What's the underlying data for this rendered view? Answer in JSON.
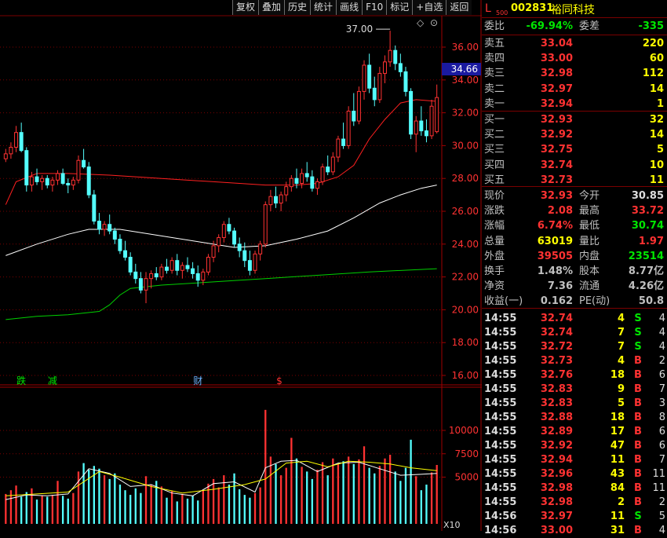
{
  "toolbar": [
    "复权",
    "叠加",
    "历史",
    "统计",
    "画线",
    "F10",
    "标记",
    "+自选",
    "返回"
  ],
  "header": {
    "market": "L",
    "market_sub": "500",
    "code": "002831",
    "name": "裕同科技"
  },
  "ratio": {
    "l1": "委比",
    "v1": "-69.94%",
    "l2": "委差",
    "v2": "-335"
  },
  "asks": [
    {
      "label": "卖五",
      "price": "33.04",
      "vol": "220"
    },
    {
      "label": "卖四",
      "price": "33.00",
      "vol": "60"
    },
    {
      "label": "卖三",
      "price": "32.98",
      "vol": "112"
    },
    {
      "label": "卖二",
      "price": "32.97",
      "vol": "14"
    },
    {
      "label": "卖一",
      "price": "32.94",
      "vol": "1"
    }
  ],
  "bids": [
    {
      "label": "买一",
      "price": "32.93",
      "vol": "32"
    },
    {
      "label": "买二",
      "price": "32.92",
      "vol": "14"
    },
    {
      "label": "买三",
      "price": "32.75",
      "vol": "5"
    },
    {
      "label": "买四",
      "price": "32.74",
      "vol": "10"
    },
    {
      "label": "买五",
      "price": "32.73",
      "vol": "11"
    }
  ],
  "stats": [
    {
      "l1": "现价",
      "v1": "32.93",
      "c1": "red",
      "l2": "今开",
      "v2": "30.85",
      "c2": "white"
    },
    {
      "l1": "涨跌",
      "v1": "2.08",
      "c1": "red",
      "l2": "最高",
      "v2": "33.72",
      "c2": "red"
    },
    {
      "l1": "涨幅",
      "v1": "6.74%",
      "c1": "red",
      "l2": "最低",
      "v2": "30.74",
      "c2": "green"
    },
    {
      "l1": "总量",
      "v1": "63019",
      "c1": "yellow",
      "l2": "量比",
      "v2": "1.97",
      "c2": "red"
    },
    {
      "l1": "外盘",
      "v1": "39505",
      "c1": "red",
      "l2": "内盘",
      "v2": "23514",
      "c2": "green"
    },
    {
      "l1": "换手",
      "v1": "1.48%",
      "c1": "gray",
      "l2": "股本",
      "v2": "8.77亿",
      "c2": "gray"
    },
    {
      "l1": "净资",
      "v1": "7.36",
      "c1": "gray",
      "l2": "流通",
      "v2": "4.26亿",
      "c2": "gray"
    },
    {
      "l1": "收益(一)",
      "v1": "0.162",
      "c1": "gray",
      "l2": "PE(动)",
      "v2": "50.8",
      "c2": "gray"
    }
  ],
  "trades": [
    {
      "time": "14:55",
      "price": "32.74",
      "vol": "4",
      "dir": "S",
      "n": "4"
    },
    {
      "time": "14:55",
      "price": "32.74",
      "vol": "7",
      "dir": "S",
      "n": "4"
    },
    {
      "time": "14:55",
      "price": "32.72",
      "vol": "7",
      "dir": "S",
      "n": "4"
    },
    {
      "time": "14:55",
      "price": "32.73",
      "vol": "4",
      "dir": "B",
      "n": "2"
    },
    {
      "time": "14:55",
      "price": "32.76",
      "vol": "18",
      "dir": "B",
      "n": "6"
    },
    {
      "time": "14:55",
      "price": "32.83",
      "vol": "9",
      "dir": "B",
      "n": "7"
    },
    {
      "time": "14:55",
      "price": "32.83",
      "vol": "5",
      "dir": "B",
      "n": "3"
    },
    {
      "time": "14:55",
      "price": "32.88",
      "vol": "18",
      "dir": "B",
      "n": "8"
    },
    {
      "time": "14:55",
      "price": "32.89",
      "vol": "17",
      "dir": "B",
      "n": "6"
    },
    {
      "time": "14:55",
      "price": "32.92",
      "vol": "47",
      "dir": "B",
      "n": "6"
    },
    {
      "time": "14:55",
      "price": "32.94",
      "vol": "11",
      "dir": "B",
      "n": "7"
    },
    {
      "time": "14:55",
      "price": "32.96",
      "vol": "43",
      "dir": "B",
      "n": "11"
    },
    {
      "time": "14:55",
      "price": "32.98",
      "vol": "84",
      "dir": "B",
      "n": "11"
    },
    {
      "time": "14:55",
      "price": "32.98",
      "vol": "2",
      "dir": "B",
      "n": "2"
    },
    {
      "time": "14:56",
      "price": "32.97",
      "vol": "11",
      "dir": "S",
      "n": "5"
    },
    {
      "time": "14:56",
      "price": "33.00",
      "vol": "31",
      "dir": "B",
      "n": "4"
    }
  ],
  "chart_data": {
    "type": "candlestick",
    "price_axis": {
      "ticks": [
        "36.00",
        "34.00",
        "32.00",
        "30.00",
        "28.00",
        "26.00",
        "24.00",
        "22.00",
        "20.00",
        "18.00",
        "16.00"
      ],
      "current_label": "34.66",
      "range": [
        15.5,
        37.5
      ]
    },
    "volume_axis": {
      "ticks": [
        "10000",
        "7500",
        "5000"
      ],
      "unit_label": "X10",
      "range": [
        0,
        13000
      ]
    },
    "high_annotation": {
      "text": "37.00",
      "price": 37.0
    },
    "event_marks": [
      {
        "text": "跌",
        "color": "#00e600",
        "bar": 3
      },
      {
        "text": "减",
        "color": "#00e600",
        "bar": 9
      },
      {
        "text": "财",
        "color": "#6fb4ff",
        "bar": 37
      },
      {
        "text": "$",
        "color": "#ff3232",
        "bar": 53
      }
    ],
    "colors": {
      "up": "#ff3232",
      "down": "#54ffff",
      "ma1": "#ff2020",
      "ma2": "#ffffff",
      "ma3": "#00d000",
      "vol_ma1": "#ffffff",
      "vol_ma2": "#ffff00"
    },
    "candles": [
      [
        29.2,
        29.8,
        29.0,
        29.5
      ],
      [
        29.5,
        30.2,
        29.2,
        29.9
      ],
      [
        29.9,
        31.2,
        29.6,
        30.8
      ],
      [
        30.8,
        31.4,
        29.6,
        29.7
      ],
      [
        29.7,
        29.9,
        27.2,
        27.6
      ],
      [
        27.6,
        28.4,
        27.2,
        28.1
      ],
      [
        28.1,
        28.6,
        27.6,
        27.8
      ],
      [
        27.8,
        28.2,
        27.3,
        28.0
      ],
      [
        28.0,
        28.2,
        27.4,
        27.6
      ],
      [
        27.6,
        28.1,
        27.2,
        27.9
      ],
      [
        27.9,
        28.5,
        27.6,
        28.3
      ],
      [
        28.3,
        28.6,
        27.6,
        27.7
      ],
      [
        27.7,
        28.0,
        27.1,
        27.6
      ],
      [
        27.6,
        28.1,
        27.3,
        27.9
      ],
      [
        27.9,
        29.4,
        27.7,
        29.1
      ],
      [
        29.1,
        29.8,
        28.6,
        28.7
      ],
      [
        28.7,
        29.0,
        26.8,
        27.0
      ],
      [
        27.0,
        27.3,
        25.2,
        25.4
      ],
      [
        25.4,
        25.9,
        24.6,
        24.9
      ],
      [
        24.9,
        25.4,
        24.5,
        25.2
      ],
      [
        25.2,
        25.8,
        24.6,
        24.8
      ],
      [
        24.8,
        25.0,
        24.0,
        24.3
      ],
      [
        24.3,
        24.6,
        23.4,
        23.6
      ],
      [
        23.6,
        24.2,
        23.0,
        23.2
      ],
      [
        23.2,
        23.5,
        22.1,
        22.3
      ],
      [
        22.3,
        22.8,
        21.6,
        21.9
      ],
      [
        21.9,
        22.3,
        21.0,
        21.2
      ],
      [
        21.2,
        22.3,
        20.4,
        21.9
      ],
      [
        21.9,
        22.4,
        21.3,
        22.2
      ],
      [
        22.2,
        22.6,
        21.8,
        22.0
      ],
      [
        22.0,
        22.8,
        21.8,
        22.6
      ],
      [
        22.6,
        23.1,
        22.2,
        22.4
      ],
      [
        22.4,
        23.2,
        22.2,
        23.0
      ],
      [
        23.0,
        23.4,
        22.1,
        22.4
      ],
      [
        22.4,
        22.9,
        21.9,
        22.7
      ],
      [
        22.7,
        23.2,
        22.3,
        22.5
      ],
      [
        22.5,
        22.9,
        21.9,
        22.2
      ],
      [
        22.2,
        22.7,
        21.4,
        21.8
      ],
      [
        21.8,
        22.5,
        21.5,
        22.3
      ],
      [
        22.3,
        23.4,
        22.1,
        23.2
      ],
      [
        23.2,
        24.2,
        22.9,
        23.9
      ],
      [
        23.9,
        24.6,
        23.5,
        24.4
      ],
      [
        24.4,
        25.4,
        24.1,
        25.2
      ],
      [
        25.2,
        25.6,
        24.6,
        24.8
      ],
      [
        24.8,
        25.0,
        23.8,
        24.0
      ],
      [
        24.0,
        24.4,
        23.2,
        23.6
      ],
      [
        23.6,
        24.1,
        22.6,
        23.0
      ],
      [
        23.0,
        23.6,
        22.1,
        22.4
      ],
      [
        22.4,
        23.6,
        22.2,
        23.4
      ],
      [
        23.4,
        24.2,
        23.0,
        24.0
      ],
      [
        24.0,
        26.6,
        23.8,
        26.4
      ],
      [
        26.4,
        27.3,
        26.0,
        26.9
      ],
      [
        26.9,
        27.5,
        26.2,
        26.5
      ],
      [
        26.5,
        27.2,
        26.0,
        27.0
      ],
      [
        27.0,
        27.8,
        26.6,
        27.5
      ],
      [
        27.5,
        28.2,
        27.2,
        28.0
      ],
      [
        28.0,
        28.6,
        27.4,
        27.7
      ],
      [
        27.7,
        28.6,
        27.4,
        28.3
      ],
      [
        28.3,
        29.0,
        27.8,
        28.1
      ],
      [
        28.1,
        28.5,
        27.2,
        27.4
      ],
      [
        27.4,
        28.0,
        27.0,
        27.8
      ],
      [
        27.8,
        28.9,
        27.6,
        28.7
      ],
      [
        28.7,
        29.4,
        28.2,
        28.4
      ],
      [
        28.4,
        29.6,
        28.2,
        29.3
      ],
      [
        29.3,
        30.6,
        29.0,
        30.4
      ],
      [
        30.4,
        31.4,
        29.8,
        30.0
      ],
      [
        30.0,
        32.4,
        29.8,
        32.1
      ],
      [
        32.1,
        33.2,
        31.2,
        31.5
      ],
      [
        31.5,
        33.6,
        31.3,
        33.3
      ],
      [
        33.3,
        35.2,
        32.8,
        34.9
      ],
      [
        34.9,
        35.6,
        33.2,
        33.5
      ],
      [
        33.5,
        34.2,
        32.4,
        32.8
      ],
      [
        32.8,
        34.8,
        32.6,
        34.4
      ],
      [
        34.4,
        35.5,
        33.8,
        35.1
      ],
      [
        35.1,
        37.0,
        34.8,
        35.8
      ],
      [
        35.8,
        36.1,
        34.6,
        35.0
      ],
      [
        35.0,
        35.6,
        34.2,
        34.5
      ],
      [
        34.5,
        34.8,
        33.0,
        33.3
      ],
      [
        33.3,
        33.5,
        30.4,
        30.7
      ],
      [
        30.7,
        31.8,
        29.6,
        31.5
      ],
      [
        31.5,
        32.4,
        30.6,
        30.9
      ],
      [
        30.9,
        31.6,
        30.2,
        30.6
      ],
      [
        30.6,
        32.8,
        30.4,
        32.4
      ],
      [
        30.85,
        33.72,
        30.74,
        32.93
      ]
    ],
    "ma_red": [
      [
        0,
        26.4
      ],
      [
        2,
        27.8
      ],
      [
        6,
        28.3
      ],
      [
        12,
        28.3
      ],
      [
        20,
        28.2
      ],
      [
        30,
        28.0
      ],
      [
        40,
        27.8
      ],
      [
        50,
        27.6
      ],
      [
        56,
        27.6
      ],
      [
        60,
        27.7
      ],
      [
        64,
        28.1
      ],
      [
        67,
        28.8
      ],
      [
        70,
        30.4
      ],
      [
        73,
        31.6
      ],
      [
        76,
        32.6
      ],
      [
        79,
        32.8
      ],
      [
        83,
        32.7
      ]
    ],
    "ma_white": [
      [
        0,
        23.3
      ],
      [
        6,
        24.0
      ],
      [
        12,
        24.6
      ],
      [
        16,
        24.9
      ],
      [
        22,
        24.9
      ],
      [
        30,
        24.5
      ],
      [
        38,
        24.1
      ],
      [
        44,
        23.8
      ],
      [
        50,
        23.9
      ],
      [
        56,
        24.3
      ],
      [
        62,
        24.8
      ],
      [
        67,
        25.6
      ],
      [
        72,
        26.5
      ],
      [
        76,
        27.0
      ],
      [
        80,
        27.4
      ],
      [
        83,
        27.6
      ]
    ],
    "ma_green": [
      [
        0,
        19.4
      ],
      [
        6,
        19.6
      ],
      [
        12,
        19.7
      ],
      [
        18,
        19.9
      ],
      [
        20,
        20.3
      ],
      [
        22,
        20.9
      ],
      [
        24,
        21.3
      ],
      [
        30,
        21.5
      ],
      [
        40,
        21.7
      ],
      [
        50,
        21.9
      ],
      [
        60,
        22.1
      ],
      [
        70,
        22.3
      ],
      [
        83,
        22.5
      ]
    ],
    "volumes": [
      [
        0,
        3200
      ],
      [
        1,
        3600
      ],
      [
        2,
        4100
      ],
      [
        3,
        2900
      ],
      [
        4,
        3400
      ],
      [
        5,
        3800
      ],
      [
        6,
        2600
      ],
      [
        7,
        3000
      ],
      [
        8,
        2900
      ],
      [
        9,
        3100
      ],
      [
        10,
        4600
      ],
      [
        11,
        3000
      ],
      [
        12,
        2700
      ],
      [
        13,
        3300
      ],
      [
        14,
        5600
      ],
      [
        15,
        6500
      ],
      [
        16,
        5800
      ],
      [
        17,
        6200
      ],
      [
        18,
        5900
      ],
      [
        19,
        5200
      ],
      [
        20,
        4800
      ],
      [
        21,
        5400
      ],
      [
        22,
        4200
      ],
      [
        23,
        3600
      ],
      [
        24,
        3100
      ],
      [
        25,
        3800
      ],
      [
        26,
        3300
      ],
      [
        27,
        5100
      ],
      [
        28,
        4200
      ],
      [
        29,
        4600
      ],
      [
        30,
        4000
      ],
      [
        31,
        2800
      ],
      [
        32,
        3500
      ],
      [
        33,
        2400
      ],
      [
        34,
        3200
      ],
      [
        35,
        2700
      ],
      [
        36,
        3000
      ],
      [
        37,
        2500
      ],
      [
        38,
        3600
      ],
      [
        39,
        4300
      ],
      [
        40,
        4800
      ],
      [
        41,
        3900
      ],
      [
        42,
        5200
      ],
      [
        43,
        4200
      ],
      [
        44,
        5400
      ],
      [
        45,
        3700
      ],
      [
        46,
        3100
      ],
      [
        47,
        2800
      ],
      [
        48,
        3300
      ],
      [
        49,
        3900
      ],
      [
        50,
        12200
      ],
      [
        51,
        7200
      ],
      [
        52,
        6400
      ],
      [
        53,
        5200
      ],
      [
        54,
        6000
      ],
      [
        55,
        9200
      ],
      [
        56,
        7000
      ],
      [
        57,
        6100
      ],
      [
        58,
        5600
      ],
      [
        59,
        4800
      ],
      [
        60,
        5800
      ],
      [
        61,
        6600
      ],
      [
        62,
        5200
      ],
      [
        63,
        7000
      ],
      [
        64,
        6400
      ],
      [
        65,
        6700
      ],
      [
        66,
        7200
      ],
      [
        67,
        6400
      ],
      [
        68,
        6900
      ],
      [
        69,
        8300
      ],
      [
        70,
        6000
      ],
      [
        71,
        5400
      ],
      [
        72,
        6200
      ],
      [
        73,
        7000
      ],
      [
        74,
        7400
      ],
      [
        75,
        5600
      ],
      [
        76,
        4600
      ],
      [
        77,
        6000
      ],
      [
        78,
        9000
      ],
      [
        79,
        5100
      ],
      [
        80,
        3600
      ],
      [
        81,
        4200
      ],
      [
        82,
        5500
      ],
      [
        83,
        6300
      ]
    ],
    "vol_ma_white": [
      [
        0,
        2600
      ],
      [
        4,
        3100
      ],
      [
        8,
        3000
      ],
      [
        12,
        3200
      ],
      [
        16,
        5900
      ],
      [
        20,
        5400
      ],
      [
        24,
        4000
      ],
      [
        28,
        4200
      ],
      [
        32,
        3300
      ],
      [
        36,
        3000
      ],
      [
        40,
        4300
      ],
      [
        44,
        4500
      ],
      [
        48,
        3400
      ],
      [
        50,
        6000
      ],
      [
        53,
        6700
      ],
      [
        56,
        6800
      ],
      [
        60,
        5600
      ],
      [
        64,
        6500
      ],
      [
        68,
        6600
      ],
      [
        72,
        5900
      ],
      [
        76,
        5200
      ],
      [
        80,
        5300
      ],
      [
        83,
        5400
      ]
    ],
    "vol_ma_yellow": [
      [
        0,
        3000
      ],
      [
        6,
        3200
      ],
      [
        12,
        3400
      ],
      [
        18,
        5600
      ],
      [
        22,
        5000
      ],
      [
        28,
        4000
      ],
      [
        34,
        3300
      ],
      [
        40,
        3700
      ],
      [
        46,
        4200
      ],
      [
        50,
        4800
      ],
      [
        54,
        6500
      ],
      [
        58,
        6700
      ],
      [
        62,
        6100
      ],
      [
        66,
        6700
      ],
      [
        70,
        6600
      ],
      [
        74,
        6400
      ],
      [
        78,
        6000
      ],
      [
        83,
        5700
      ]
    ]
  }
}
